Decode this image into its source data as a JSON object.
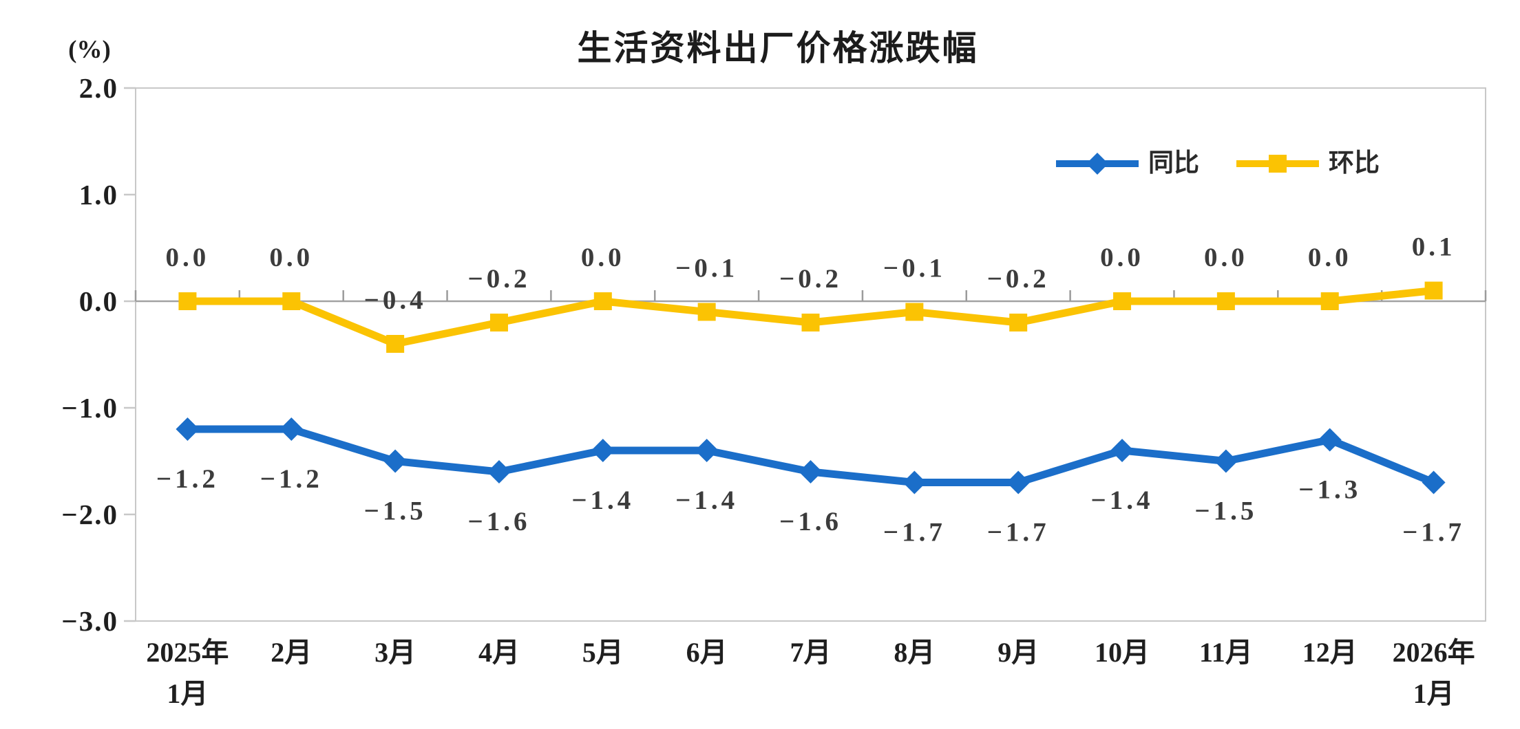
{
  "title": "生活资料出厂价格涨跌幅",
  "chart_data": {
    "type": "line",
    "title": "生活资料出厂价格涨跌幅",
    "ylabel": "(%)",
    "ylim": [
      -3.0,
      2.0
    ],
    "yticks": [
      "2.0",
      "1.0",
      "0.0",
      "-1.0",
      "-2.0",
      "-3.0"
    ],
    "grid": false,
    "legend_position": "top-right-inside",
    "categories": [
      "2025年|1月",
      "2月",
      "3月",
      "4月",
      "5月",
      "6月",
      "7月",
      "8月",
      "9月",
      "10月",
      "11月",
      "12月",
      "2026年|1月"
    ],
    "series": [
      {
        "name": "同比",
        "id": "yoy",
        "color": "#1B6EC9",
        "marker": "diamond",
        "label_position": "below",
        "values": [
          -1.2,
          -1.2,
          -1.5,
          -1.6,
          -1.4,
          -1.4,
          -1.6,
          -1.7,
          -1.7,
          -1.4,
          -1.5,
          -1.3,
          -1.7
        ]
      },
      {
        "name": "环比",
        "id": "mom",
        "color": "#FBC303",
        "marker": "square",
        "label_position": "above",
        "values": [
          0.0,
          0.0,
          -0.4,
          -0.2,
          0.0,
          -0.1,
          -0.2,
          -0.1,
          -0.2,
          0.0,
          0.0,
          0.0,
          0.1
        ]
      }
    ]
  },
  "colors": {
    "background": "#FFFFFF",
    "plot_border": "#C8C8C8",
    "zero_axis": "#A2A2A2",
    "tick": "#9B9B9B",
    "axis_text": "#1F1F1F",
    "data_label_text": "#3C3C3C"
  }
}
